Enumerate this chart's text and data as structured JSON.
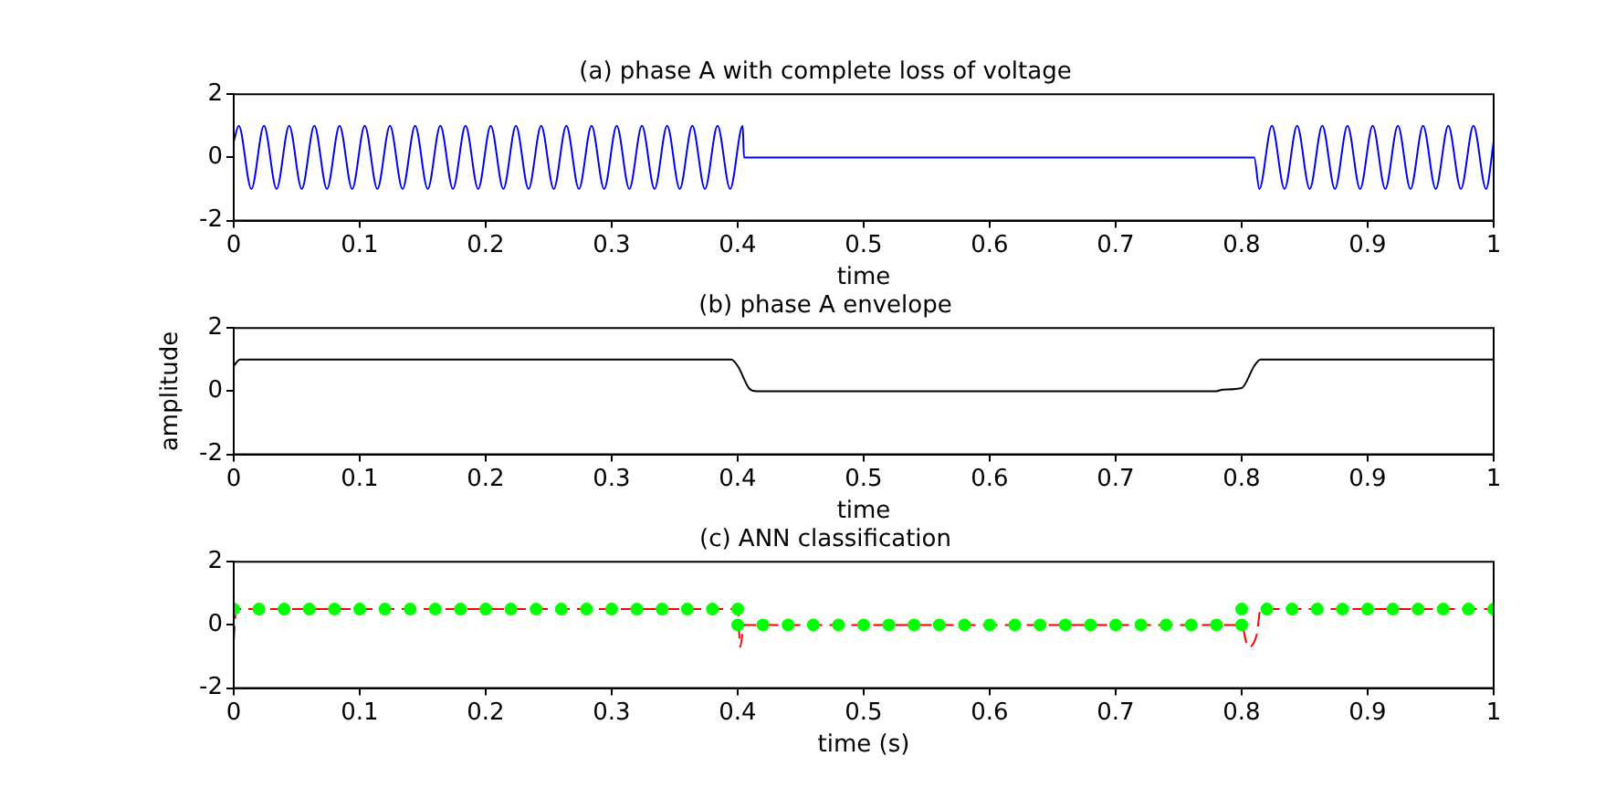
{
  "chart_data": [
    {
      "type": "line",
      "title": "(a) phase A with complete loss of voltage",
      "xlabel": "time",
      "xlim": [
        0,
        1
      ],
      "xticks": [
        0,
        0.1,
        0.2,
        0.3,
        0.4,
        0.5,
        0.6,
        0.7,
        0.8,
        0.9,
        1
      ],
      "ylim": [
        -2,
        2
      ],
      "yticks": [
        -2,
        0,
        2
      ],
      "grid": false,
      "legend": false,
      "series": [
        {
          "color": "#0000ff",
          "x": [
            0,
            0.004,
            0.014,
            0.024,
            0.034,
            0.044,
            0.054,
            0.064,
            0.074,
            0.084,
            0.094,
            0.104,
            0.114,
            0.124,
            0.134,
            0.144,
            0.154,
            0.164,
            0.174,
            0.184,
            0.194,
            0.204,
            0.214,
            0.224,
            0.234,
            0.244,
            0.254,
            0.264,
            0.274,
            0.284,
            0.294,
            0.304,
            0.314,
            0.324,
            0.334,
            0.344,
            0.354,
            0.364,
            0.374,
            0.384,
            0.394,
            0.404,
            0.405,
            0.81,
            0.814,
            0.824,
            0.834,
            0.844,
            0.854,
            0.864,
            0.874,
            0.884,
            0.894,
            0.904,
            0.914,
            0.924,
            0.934,
            0.944,
            0.954,
            0.964,
            0.974,
            0.984,
            0.994,
            1
          ],
          "values": [
            0.5,
            1,
            -1,
            1,
            -1,
            1,
            -1,
            1,
            -1,
            1,
            -1,
            1,
            -1,
            1,
            -1,
            1,
            -1,
            1,
            -1,
            1,
            -1,
            1,
            -1,
            1,
            -1,
            1,
            -1,
            1,
            -1,
            1,
            -1,
            1,
            -1,
            1,
            -1,
            1,
            -1,
            1,
            -1,
            1,
            -1,
            1,
            0,
            0,
            -1,
            1,
            -1,
            1,
            -1,
            1,
            -1,
            1,
            -1,
            1,
            -1,
            1,
            -1,
            1,
            -1,
            1,
            -1,
            1,
            -1,
            0.5
          ]
        }
      ]
    },
    {
      "type": "line",
      "title": "(b) phase A envelope",
      "xlabel": "time",
      "ylabel": "amplitude",
      "xlim": [
        0,
        1
      ],
      "xticks": [
        0,
        0.1,
        0.2,
        0.3,
        0.4,
        0.5,
        0.6,
        0.7,
        0.8,
        0.9,
        1
      ],
      "ylim": [
        -2,
        2
      ],
      "yticks": [
        -2,
        0,
        2
      ],
      "grid": false,
      "legend": false,
      "series": [
        {
          "color": "#000000",
          "x": [
            0,
            0.005,
            0.395,
            0.4,
            0.41,
            0.415,
            0.78,
            0.785,
            0.8,
            0.81,
            0.815,
            1
          ],
          "values": [
            0.8,
            1,
            1,
            0.8,
            0.05,
            0,
            0,
            0.05,
            0.1,
            0.8,
            1,
            1
          ]
        }
      ]
    },
    {
      "type": "line",
      "title": "(c) ANN classification",
      "xlabel": "time (s)",
      "xlim": [
        0,
        1
      ],
      "xticks": [
        0,
        0.1,
        0.2,
        0.3,
        0.4,
        0.5,
        0.6,
        0.7,
        0.8,
        0.9,
        1
      ],
      "ylim": [
        -2,
        2
      ],
      "yticks": [
        -2,
        0,
        2
      ],
      "grid": false,
      "legend": false,
      "series": [
        {
          "type": "scatter",
          "marker": "circle",
          "color": "#00ff00",
          "x": [
            0,
            0.02,
            0.04,
            0.06,
            0.08,
            0.1,
            0.12,
            0.14,
            0.16,
            0.18,
            0.2,
            0.22,
            0.24,
            0.26,
            0.28,
            0.3,
            0.32,
            0.34,
            0.36,
            0.38,
            0.4,
            0.4,
            0.42,
            0.44,
            0.46,
            0.48,
            0.5,
            0.52,
            0.54,
            0.56,
            0.58,
            0.6,
            0.62,
            0.64,
            0.66,
            0.68,
            0.7,
            0.72,
            0.74,
            0.76,
            0.78,
            0.8,
            0.8,
            0.82,
            0.84,
            0.86,
            0.88,
            0.9,
            0.92,
            0.94,
            0.96,
            0.98,
            1
          ],
          "values": [
            0.5,
            0.5,
            0.5,
            0.5,
            0.5,
            0.5,
            0.5,
            0.5,
            0.5,
            0.5,
            0.5,
            0.5,
            0.5,
            0.5,
            0.5,
            0.5,
            0.5,
            0.5,
            0.5,
            0.5,
            0.5,
            0,
            0,
            0,
            0,
            0,
            0,
            0,
            0,
            0,
            0,
            0,
            0,
            0,
            0,
            0,
            0,
            0,
            0,
            0,
            0,
            0,
            0.5,
            0.5,
            0.5,
            0.5,
            0.5,
            0.5,
            0.5,
            0.5,
            0.5,
            0.5,
            0.5
          ]
        },
        {
          "type": "line",
          "line_style": "dashed",
          "color": "#ff0000",
          "x": [
            0,
            0.002,
            0.4,
            0.402,
            0.405,
            0.8,
            0.805,
            0.812,
            0.815,
            1
          ],
          "values": [
            -0.5,
            0.5,
            0.5,
            -0.7,
            0,
            0,
            -0.7,
            -0.3,
            0.5,
            0.5
          ]
        }
      ]
    }
  ]
}
